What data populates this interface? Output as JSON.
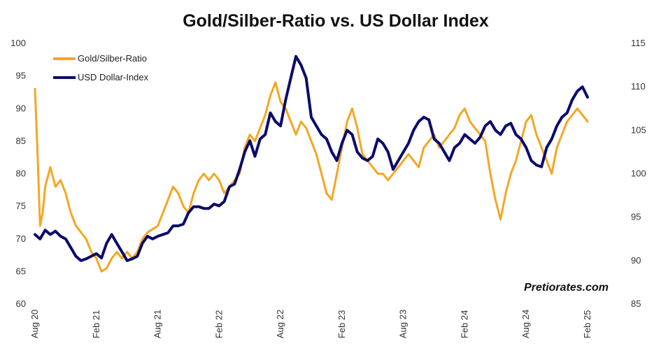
{
  "chart_data": {
    "type": "line",
    "title": "Gold/Silber-Ratio vs. US Dollar Index",
    "watermark": "Pretiorates.com",
    "x_ticks": [
      "Aug 20",
      "Feb 21",
      "Aug 21",
      "Feb 22",
      "Aug 22",
      "Feb 23",
      "Aug 23",
      "Feb 24",
      "Aug 24",
      "Feb 25"
    ],
    "y_left": {
      "min": 60,
      "max": 100,
      "ticks": [
        "60",
        "65",
        "70",
        "75",
        "80",
        "85",
        "90",
        "95",
        "100"
      ]
    },
    "y_right": {
      "min": 85,
      "max": 115,
      "ticks": [
        "85",
        "90",
        "95",
        "100",
        "105",
        "110",
        "115"
      ]
    },
    "grid": false,
    "legend_position": "top-left",
    "series": [
      {
        "name": "Gold/Silber-Ratio",
        "axis": "left",
        "color": "#F5A623",
        "points": [
          [
            "Aug 20",
            93
          ],
          [
            "Aug 20",
            83
          ],
          [
            "Aug 20",
            72
          ],
          [
            "Aug 20",
            74
          ],
          [
            "Sep 20",
            78
          ],
          [
            "Sep 20",
            81
          ],
          [
            "Oct 20",
            78
          ],
          [
            "Oct 20",
            79
          ],
          [
            "Nov 20",
            77
          ],
          [
            "Nov 20",
            74
          ],
          [
            "Dec 20",
            72
          ],
          [
            "Dec 20",
            71
          ],
          [
            "Jan 21",
            70
          ],
          [
            "Jan 21",
            68
          ],
          [
            "Feb 21",
            67
          ],
          [
            "Feb 21",
            65
          ],
          [
            "Mar 21",
            65.5
          ],
          [
            "Mar 21",
            67
          ],
          [
            "Apr 21",
            68
          ],
          [
            "Apr 21",
            67
          ],
          [
            "May 21",
            68
          ],
          [
            "May 21",
            67
          ],
          [
            "Jun 21",
            68
          ],
          [
            "Jun 21",
            70
          ],
          [
            "Jul 21",
            71
          ],
          [
            "Jul 21",
            71.5
          ],
          [
            "Aug 21",
            72
          ],
          [
            "Aug 21",
            74
          ],
          [
            "Sep 21",
            76
          ],
          [
            "Sep 21",
            78
          ],
          [
            "Oct 21",
            77
          ],
          [
            "Oct 21",
            75
          ],
          [
            "Nov 21",
            74
          ],
          [
            "Nov 21",
            77
          ],
          [
            "Dec 21",
            79
          ],
          [
            "Dec 21",
            80
          ],
          [
            "Jan 22",
            79
          ],
          [
            "Jan 22",
            80
          ],
          [
            "Feb 22",
            79
          ],
          [
            "Feb 22",
            77
          ],
          [
            "Mar 22",
            78
          ],
          [
            "Mar 22",
            79
          ],
          [
            "Apr 22",
            80
          ],
          [
            "Apr 22",
            84
          ],
          [
            "May 22",
            86
          ],
          [
            "May 22",
            85
          ],
          [
            "Jun 22",
            87
          ],
          [
            "Jun 22",
            89
          ],
          [
            "Jul 22",
            92
          ],
          [
            "Jul 22",
            94
          ],
          [
            "Aug 22",
            91
          ],
          [
            "Aug 22",
            90
          ],
          [
            "Sep 22",
            88
          ],
          [
            "Sep 22",
            86
          ],
          [
            "Oct 22",
            88
          ],
          [
            "Oct 22",
            87
          ],
          [
            "Nov 22",
            85
          ],
          [
            "Nov 22",
            83
          ],
          [
            "Dec 22",
            80
          ],
          [
            "Dec 22",
            77
          ],
          [
            "Jan 23",
            76
          ],
          [
            "Jan 23",
            80
          ],
          [
            "Feb 23",
            84
          ],
          [
            "Feb 23",
            88
          ],
          [
            "Mar 23",
            90
          ],
          [
            "Mar 23",
            87
          ],
          [
            "Apr 23",
            83
          ],
          [
            "Apr 23",
            82
          ],
          [
            "May 23",
            81
          ],
          [
            "May 23",
            80
          ],
          [
            "Jun 23",
            80
          ],
          [
            "Jun 23",
            79
          ],
          [
            "Jul 23",
            80
          ],
          [
            "Jul 23",
            81
          ],
          [
            "Aug 23",
            82
          ],
          [
            "Aug 23",
            83
          ],
          [
            "Sep 23",
            82
          ],
          [
            "Sep 23",
            81
          ],
          [
            "Oct 23",
            84
          ],
          [
            "Oct 23",
            85
          ],
          [
            "Nov 23",
            86
          ],
          [
            "Nov 23",
            84
          ],
          [
            "Dec 23",
            85
          ],
          [
            "Dec 23",
            86
          ],
          [
            "Jan 24",
            87
          ],
          [
            "Jan 24",
            89
          ],
          [
            "Feb 24",
            90
          ],
          [
            "Feb 24",
            88
          ],
          [
            "Mar 24",
            87
          ],
          [
            "Mar 24",
            86
          ],
          [
            "Apr 24",
            85
          ],
          [
            "Apr 24",
            80
          ],
          [
            "May 24",
            76
          ],
          [
            "May 24",
            73
          ],
          [
            "Jun 24",
            77
          ],
          [
            "Jun 24",
            80
          ],
          [
            "Jul 24",
            82
          ],
          [
            "Jul 24",
            85
          ],
          [
            "Aug 24",
            88
          ],
          [
            "Aug 24",
            89
          ],
          [
            "Sep 24",
            86
          ],
          [
            "Sep 24",
            84
          ],
          [
            "Oct 24",
            82
          ],
          [
            "Oct 24",
            80
          ],
          [
            "Nov 24",
            84
          ],
          [
            "Nov 24",
            86
          ],
          [
            "Dec 24",
            88
          ],
          [
            "Dec 24",
            89
          ],
          [
            "Jan 25",
            90
          ],
          [
            "Jan 25",
            89
          ],
          [
            "Feb 25",
            88
          ]
        ]
      },
      {
        "name": "USD Dollar-Index",
        "axis": "right",
        "color": "#0B0B6B",
        "points": [
          [
            "Aug 20",
            93
          ],
          [
            "Aug 20",
            92.5
          ],
          [
            "Sep 20",
            93.5
          ],
          [
            "Sep 20",
            93
          ],
          [
            "Oct 20",
            93.4
          ],
          [
            "Oct 20",
            92.8
          ],
          [
            "Nov 20",
            92.5
          ],
          [
            "Nov 20",
            91.5
          ],
          [
            "Dec 20",
            90.5
          ],
          [
            "Dec 20",
            90
          ],
          [
            "Jan 21",
            90.2
          ],
          [
            "Jan 21",
            90.5
          ],
          [
            "Feb 21",
            90.8
          ],
          [
            "Feb 21",
            90.3
          ],
          [
            "Mar 21",
            92
          ],
          [
            "Mar 21",
            93
          ],
          [
            "Apr 21",
            92
          ],
          [
            "Apr 21",
            91
          ],
          [
            "May 21",
            90
          ],
          [
            "May 21",
            90.2
          ],
          [
            "Jun 21",
            90.5
          ],
          [
            "Jun 21",
            92
          ],
          [
            "Jul 21",
            92.8
          ],
          [
            "Jul 21",
            92.5
          ],
          [
            "Aug 21",
            92.8
          ],
          [
            "Aug 21",
            93
          ],
          [
            "Sep 21",
            93.2
          ],
          [
            "Sep 21",
            94
          ],
          [
            "Oct 21",
            94
          ],
          [
            "Oct 21",
            94.2
          ],
          [
            "Nov 21",
            95.5
          ],
          [
            "Nov 21",
            96.2
          ],
          [
            "Dec 21",
            96.2
          ],
          [
            "Dec 21",
            96
          ],
          [
            "Jan 22",
            96
          ],
          [
            "Jan 22",
            96.5
          ],
          [
            "Feb 22",
            96.3
          ],
          [
            "Feb 22",
            96.8
          ],
          [
            "Mar 22",
            98.5
          ],
          [
            "Mar 22",
            98.8
          ],
          [
            "Apr 22",
            100.5
          ],
          [
            "Apr 22",
            102.5
          ],
          [
            "May 22",
            103.8
          ],
          [
            "May 22",
            102
          ],
          [
            "Jun 22",
            104
          ],
          [
            "Jun 22",
            104.5
          ],
          [
            "Jul 22",
            107
          ],
          [
            "Jul 22",
            106
          ],
          [
            "Aug 22",
            105.5
          ],
          [
            "Aug 22",
            108.5
          ],
          [
            "Sep 22",
            111
          ],
          [
            "Sep 22",
            113.5
          ],
          [
            "Oct 22",
            112.5
          ],
          [
            "Oct 22",
            111
          ],
          [
            "Nov 22",
            106.5
          ],
          [
            "Nov 22",
            105.5
          ],
          [
            "Dec 22",
            104.5
          ],
          [
            "Dec 22",
            104
          ],
          [
            "Jan 23",
            102.5
          ],
          [
            "Jan 23",
            101.5
          ],
          [
            "Feb 23",
            103.5
          ],
          [
            "Feb 23",
            105
          ],
          [
            "Mar 23",
            104.5
          ],
          [
            "Mar 23",
            102.5
          ],
          [
            "Apr 23",
            101.8
          ],
          [
            "Apr 23",
            101.5
          ],
          [
            "May 23",
            102
          ],
          [
            "May 23",
            104
          ],
          [
            "Jun 23",
            103.5
          ],
          [
            "Jun 23",
            102.5
          ],
          [
            "Jul 23",
            100.5
          ],
          [
            "Jul 23",
            101.5
          ],
          [
            "Aug 23",
            102.5
          ],
          [
            "Aug 23",
            103.5
          ],
          [
            "Sep 23",
            105
          ],
          [
            "Sep 23",
            106
          ],
          [
            "Oct 23",
            106.5
          ],
          [
            "Oct 23",
            106.2
          ],
          [
            "Nov 23",
            104
          ],
          [
            "Nov 23",
            103.5
          ],
          [
            "Dec 23",
            102.5
          ],
          [
            "Dec 23",
            101.5
          ],
          [
            "Jan 24",
            103
          ],
          [
            "Jan 24",
            103.5
          ],
          [
            "Feb 24",
            104.5
          ],
          [
            "Feb 24",
            104
          ],
          [
            "Mar 24",
            103.5
          ],
          [
            "Mar 24",
            104.2
          ],
          [
            "Apr 24",
            105.5
          ],
          [
            "Apr 24",
            106
          ],
          [
            "May 24",
            105
          ],
          [
            "May 24",
            104.5
          ],
          [
            "Jun 24",
            105.5
          ],
          [
            "Jun 24",
            105.8
          ],
          [
            "Jul 24",
            104.5
          ],
          [
            "Jul 24",
            104
          ],
          [
            "Aug 24",
            103
          ],
          [
            "Aug 24",
            101.5
          ],
          [
            "Sep 24",
            101
          ],
          [
            "Sep 24",
            100.8
          ],
          [
            "Oct 24",
            103
          ],
          [
            "Oct 24",
            104
          ],
          [
            "Nov 24",
            105.5
          ],
          [
            "Nov 24",
            106.5
          ],
          [
            "Dec 24",
            107
          ],
          [
            "Dec 24",
            108.5
          ],
          [
            "Jan 25",
            109.5
          ],
          [
            "Jan 25",
            110
          ],
          [
            "Feb 25",
            108.8
          ]
        ]
      }
    ]
  }
}
